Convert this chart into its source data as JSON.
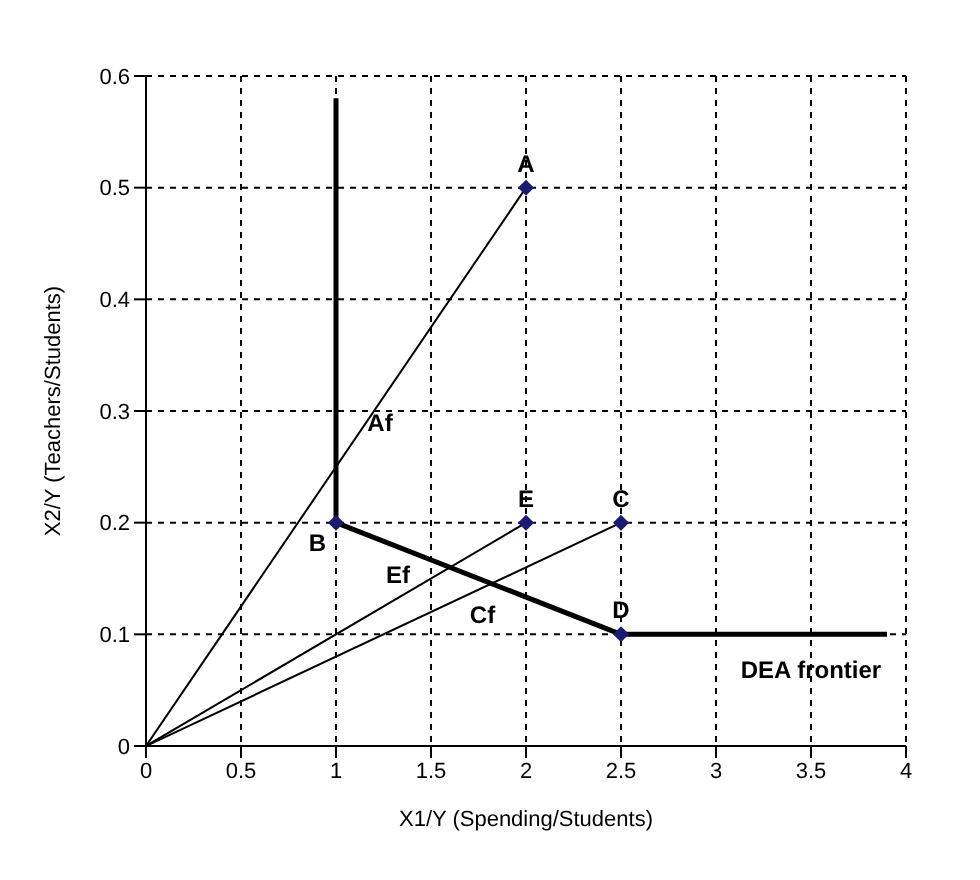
{
  "chart_data": {
    "type": "line",
    "xlabel": "X1/Y (Spending/Students)",
    "ylabel": "X2/Y (Teachers/Students)",
    "xlim": [
      0,
      4
    ],
    "xticks": [
      0,
      0.5,
      1,
      1.5,
      2,
      2.5,
      3,
      3.5,
      4
    ],
    "ylim": [
      0,
      0.6
    ],
    "yticks": [
      0,
      0.1,
      0.2,
      0.3,
      0.4,
      0.5,
      0.6
    ],
    "grid": true,
    "legend": false,
    "marker": "none",
    "line_style": "solid",
    "series": [
      {
        "type": "line",
        "color": "#000000",
        "x": [
          0,
          2
        ],
        "values": [
          0,
          0.5
        ]
      },
      {
        "type": "line",
        "color": "#000000",
        "x": [
          0,
          2
        ],
        "values": [
          0,
          0.2
        ]
      },
      {
        "type": "line",
        "color": "#000000",
        "x": [
          0,
          2.5
        ],
        "values": [
          0,
          0.2
        ]
      },
      {
        "type": "line",
        "color": "#000000",
        "x": [
          1,
          1,
          2.5,
          3.9
        ],
        "values": [
          0.58,
          0.2,
          0.1,
          0.1
        ]
      },
      {
        "type": "scatter",
        "marker": "diamond",
        "color": "#1a1a6e",
        "x": [
          2,
          1,
          2.5,
          2.5,
          2
        ],
        "values": [
          0.5,
          0.2,
          0.2,
          0.1,
          0.2
        ]
      }
    ],
    "annotations": [
      {
        "text": "A",
        "x": 2,
        "y": 0.5
      },
      {
        "text": "B",
        "x": 1,
        "y": 0.2
      },
      {
        "text": "C",
        "x": 2.5,
        "y": 0.2
      },
      {
        "text": "D",
        "x": 2.5,
        "y": 0.1
      },
      {
        "text": "E",
        "x": 2,
        "y": 0.2
      },
      {
        "text": "Af",
        "x": 1,
        "y": 0.25
      },
      {
        "text": "Ef",
        "x": 1.6,
        "y": 0.16
      },
      {
        "text": "Cf",
        "x": 1.75,
        "y": 0.15
      },
      {
        "text": "DEA frontier",
        "x": 3.5,
        "y": 0.1
      }
    ]
  }
}
